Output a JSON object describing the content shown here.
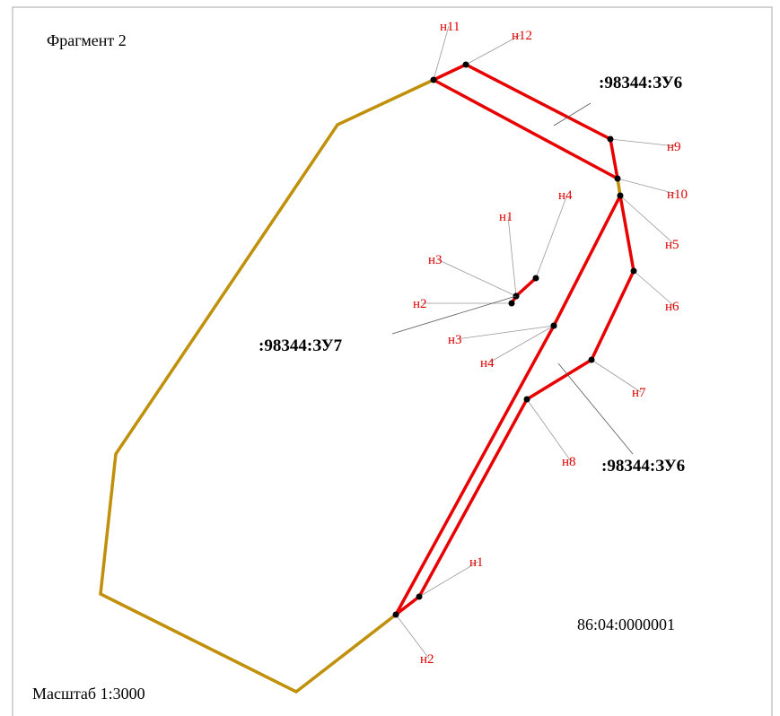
{
  "title": "Фрагмент 2",
  "scale": "Масштаб 1:3000",
  "cadastral_block": "86:04:0000001",
  "parcels": [
    {
      "label": ":98344:ЗУ6"
    },
    {
      "label": ":98344:ЗУ7"
    },
    {
      "label": ":98344:ЗУ6"
    }
  ],
  "points": [
    {
      "label": "н11"
    },
    {
      "label": "н12"
    },
    {
      "label": "н9"
    },
    {
      "label": "н10"
    },
    {
      "label": "н5"
    },
    {
      "label": "н6"
    },
    {
      "label": "н7"
    },
    {
      "label": "н8"
    },
    {
      "label": "н3"
    },
    {
      "label": "н4"
    },
    {
      "label": "н1"
    },
    {
      "label": "н2"
    },
    {
      "label": "н1"
    },
    {
      "label": "н2"
    },
    {
      "label": "н3"
    },
    {
      "label": "н4"
    }
  ]
}
